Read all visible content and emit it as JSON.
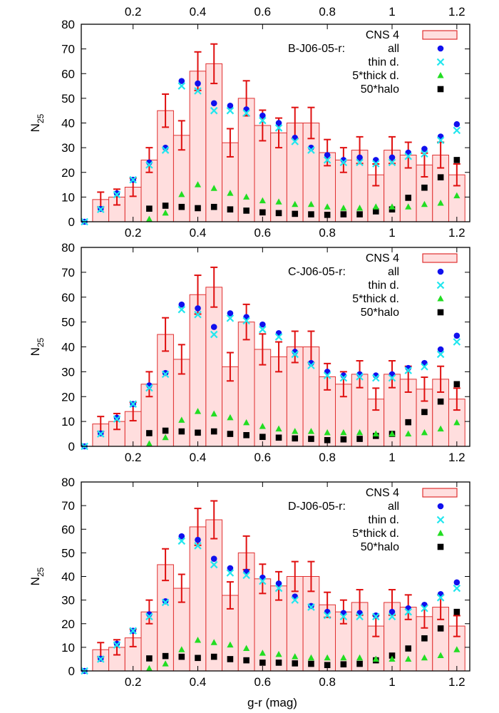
{
  "colors": {
    "hist_fill": "#ffdede",
    "hist_edge": "#e03030",
    "error_bar": "#e01010",
    "all": "#1010ee",
    "thin": "#22e6ee",
    "thick": "#22dd22",
    "halo": "#000000"
  },
  "shared": {
    "xlabel": "g-r (mag)",
    "ylabel_main": "N",
    "ylabel_sub": "25",
    "xticks": [
      0.2,
      0.4,
      0.6,
      0.8,
      1,
      1.2
    ],
    "xtick_labels": [
      "0.2",
      "0.4",
      "0.6",
      "0.8",
      "1",
      "1.2"
    ],
    "yticks": [
      0,
      10,
      20,
      30,
      40,
      50,
      60,
      70,
      80
    ],
    "xlim": [
      0.04,
      1.24
    ],
    "ylim": [
      0,
      80
    ],
    "legend": {
      "hist_label": "CNS 4",
      "all_label": "all",
      "thin_label": "thin d.",
      "thick_label": "5*thick d.",
      "halo_label": "50*halo"
    }
  },
  "chart_data": [
    {
      "type": "bar",
      "model_label": "B-J06-05-r:",
      "hist": {
        "bin_edges": [
          0.075,
          0.125,
          0.175,
          0.225,
          0.275,
          0.325,
          0.375,
          0.425,
          0.475,
          0.525,
          0.575,
          0.625,
          0.675,
          0.725,
          0.775,
          0.825,
          0.875,
          0.925,
          0.975,
          1.025,
          1.075,
          1.125,
          1.175,
          1.225
        ],
        "counts": [
          9,
          10,
          14,
          25,
          45,
          35,
          61,
          64,
          32,
          50,
          39,
          36,
          40,
          40,
          28,
          25,
          29,
          19,
          29,
          27,
          23,
          27,
          19
        ],
        "errors": [
          3,
          3.2,
          3.7,
          5,
          6.7,
          5.9,
          7.8,
          8,
          5.7,
          7.1,
          6.2,
          6,
          6.3,
          6.3,
          5.3,
          5,
          5.4,
          4.4,
          5.4,
          5.2,
          4.8,
          5.2,
          4.4
        ]
      },
      "series": [
        {
          "name": "all",
          "x": [
            0.05,
            0.1,
            0.15,
            0.2,
            0.25,
            0.3,
            0.35,
            0.4,
            0.45,
            0.5,
            0.55,
            0.6,
            0.65,
            0.7,
            0.75,
            0.8,
            0.85,
            0.9,
            0.95,
            1.0,
            1.05,
            1.1,
            1.15,
            1.2
          ],
          "y": [
            0,
            5.2,
            11.5,
            17,
            24,
            30,
            57,
            56,
            48,
            47,
            45.5,
            43,
            40,
            34,
            30,
            27,
            25,
            26,
            25,
            26,
            28,
            29.5,
            34.5,
            39.5
          ]
        },
        {
          "name": "thin d.",
          "x": [
            0.05,
            0.1,
            0.15,
            0.2,
            0.25,
            0.3,
            0.35,
            0.4,
            0.45,
            0.5,
            0.55,
            0.6,
            0.65,
            0.7,
            0.75,
            0.8,
            0.85,
            0.9,
            0.95,
            1.0,
            1.05,
            1.1,
            1.15,
            1.2
          ],
          "y": [
            0,
            5,
            11,
            17,
            23,
            29,
            55,
            53,
            45,
            45,
            44,
            41,
            38,
            32.5,
            29,
            25,
            24,
            24,
            23.5,
            24,
            26.5,
            27.5,
            33,
            37
          ]
        },
        {
          "name": "5*thick d.",
          "x": [
            0.25,
            0.3,
            0.35,
            0.4,
            0.45,
            0.5,
            0.55,
            0.6,
            0.65,
            0.7,
            0.75,
            0.8,
            0.85,
            0.9,
            0.95,
            1.0,
            1.05,
            1.1,
            1.15,
            1.2
          ],
          "y": [
            1,
            3.5,
            11,
            15,
            13.5,
            11.5,
            10,
            8.5,
            8,
            7,
            7,
            6,
            5.5,
            5.5,
            6,
            6,
            6,
            7,
            7.5,
            10.5
          ]
        },
        {
          "name": "50*halo",
          "x": [
            0.25,
            0.3,
            0.35,
            0.4,
            0.45,
            0.5,
            0.55,
            0.6,
            0.65,
            0.7,
            0.75,
            0.8,
            0.85,
            0.9,
            0.95,
            1.0,
            1.05,
            1.1,
            1.15,
            1.2
          ],
          "y": [
            5.3,
            6.5,
            6,
            5.5,
            6,
            5,
            4.5,
            3.8,
            3.5,
            3.2,
            3,
            2.8,
            3,
            3,
            4.2,
            5,
            9.7,
            13.8,
            18,
            25
          ]
        }
      ]
    },
    {
      "type": "bar",
      "model_label": "C-J06-05-r:",
      "hist": {
        "bin_edges": [
          0.075,
          0.125,
          0.175,
          0.225,
          0.275,
          0.325,
          0.375,
          0.425,
          0.475,
          0.525,
          0.575,
          0.625,
          0.675,
          0.725,
          0.775,
          0.825,
          0.875,
          0.925,
          0.975,
          1.025,
          1.075,
          1.125,
          1.175,
          1.225
        ],
        "counts": [
          9,
          10,
          14,
          25,
          45,
          35,
          61,
          64,
          32,
          50,
          39,
          36,
          40,
          40,
          28,
          25,
          29,
          19,
          29,
          27,
          23,
          27,
          19
        ],
        "errors": [
          3,
          3.2,
          3.7,
          5,
          6.7,
          5.9,
          7.8,
          8,
          5.7,
          7.1,
          6.2,
          6,
          6.3,
          6.3,
          5.3,
          5,
          5.4,
          4.4,
          5.4,
          5.2,
          4.8,
          5.2,
          4.4
        ]
      },
      "series": [
        {
          "name": "all",
          "x": [
            0.05,
            0.1,
            0.15,
            0.2,
            0.25,
            0.3,
            0.35,
            0.4,
            0.45,
            0.5,
            0.55,
            0.6,
            0.65,
            0.7,
            0.75,
            0.8,
            0.85,
            0.9,
            0.95,
            1.0,
            1.05,
            1.1,
            1.15,
            1.2
          ],
          "y": [
            0,
            5.2,
            11.5,
            17,
            24.5,
            29.5,
            57,
            55.5,
            48,
            53.5,
            52,
            49,
            45.5,
            38,
            33.5,
            30,
            28.5,
            29,
            28.5,
            29,
            31.5,
            33.5,
            39,
            44.5
          ]
        },
        {
          "name": "thin d.",
          "x": [
            0.05,
            0.1,
            0.15,
            0.2,
            0.25,
            0.3,
            0.35,
            0.4,
            0.45,
            0.5,
            0.55,
            0.6,
            0.65,
            0.7,
            0.75,
            0.8,
            0.85,
            0.9,
            0.95,
            1.0,
            1.05,
            1.1,
            1.15,
            1.2
          ],
          "y": [
            0,
            5,
            11,
            17,
            23.5,
            29,
            55,
            53,
            45,
            51.5,
            50.5,
            47,
            44,
            37,
            32.5,
            28.5,
            27.5,
            28,
            27.5,
            27.5,
            30.5,
            32,
            37,
            42
          ]
        },
        {
          "name": "5*thick d.",
          "x": [
            0.25,
            0.3,
            0.35,
            0.4,
            0.45,
            0.5,
            0.55,
            0.6,
            0.65,
            0.7,
            0.75,
            0.8,
            0.85,
            0.9,
            0.95,
            1.0,
            1.05,
            1.1,
            1.15,
            1.2
          ],
          "y": [
            1,
            3.5,
            10.5,
            14,
            13,
            11.5,
            9.5,
            8,
            7,
            6,
            6,
            5.5,
            5.5,
            5.5,
            5,
            5,
            5,
            5.5,
            7,
            9.5
          ]
        },
        {
          "name": "50*halo",
          "x": [
            0.25,
            0.3,
            0.35,
            0.4,
            0.45,
            0.5,
            0.55,
            0.6,
            0.65,
            0.7,
            0.75,
            0.8,
            0.85,
            0.9,
            0.95,
            1.0,
            1.05,
            1.1,
            1.15,
            1.2
          ],
          "y": [
            5.3,
            6.3,
            6,
            5.5,
            6,
            5,
            4.5,
            3.8,
            3.5,
            3.2,
            3,
            2.5,
            2.8,
            3,
            4.2,
            5,
            9.7,
            13.8,
            18,
            25
          ]
        }
      ]
    },
    {
      "type": "bar",
      "model_label": "D-J06-05-r:",
      "hist": {
        "bin_edges": [
          0.075,
          0.125,
          0.175,
          0.225,
          0.275,
          0.325,
          0.375,
          0.425,
          0.475,
          0.525,
          0.575,
          0.625,
          0.675,
          0.725,
          0.775,
          0.825,
          0.875,
          0.925,
          0.975,
          1.025,
          1.075,
          1.125,
          1.175,
          1.225
        ],
        "counts": [
          9,
          10,
          14,
          25,
          45,
          35,
          61,
          64,
          32,
          50,
          39,
          36,
          40,
          40,
          28,
          25,
          29,
          19,
          29,
          27,
          23,
          27,
          19
        ],
        "errors": [
          3,
          3.2,
          3.7,
          5,
          6.7,
          5.9,
          7.8,
          8,
          5.7,
          7.1,
          6.2,
          6,
          6.3,
          6.3,
          5.3,
          5,
          5.4,
          4.4,
          5.4,
          5.2,
          4.8,
          5.2,
          4.4
        ]
      },
      "series": [
        {
          "name": "all",
          "x": [
            0.05,
            0.1,
            0.15,
            0.2,
            0.25,
            0.3,
            0.35,
            0.4,
            0.45,
            0.5,
            0.55,
            0.6,
            0.65,
            0.7,
            0.75,
            0.8,
            0.85,
            0.9,
            0.95,
            1.0,
            1.05,
            1.1,
            1.15,
            1.2
          ],
          "y": [
            0,
            5.2,
            11.5,
            17,
            24,
            29.5,
            57,
            55.5,
            47.5,
            43.5,
            42,
            39.5,
            37,
            31.5,
            27.5,
            25,
            24.5,
            24.5,
            23.5,
            25,
            26.5,
            28,
            32.5,
            37.5
          ]
        },
        {
          "name": "thin d.",
          "x": [
            0.05,
            0.1,
            0.15,
            0.2,
            0.25,
            0.3,
            0.35,
            0.4,
            0.45,
            0.5,
            0.55,
            0.6,
            0.65,
            0.7,
            0.75,
            0.8,
            0.85,
            0.9,
            0.95,
            1.0,
            1.05,
            1.1,
            1.15,
            1.2
          ],
          "y": [
            0,
            5,
            11,
            17,
            23,
            29,
            55,
            53,
            45,
            41.5,
            40.5,
            38,
            35,
            30,
            27,
            23.5,
            23,
            23,
            23,
            23,
            25,
            26.5,
            31,
            35
          ]
        },
        {
          "name": "5*thick d.",
          "x": [
            0.25,
            0.3,
            0.35,
            0.4,
            0.45,
            0.5,
            0.55,
            0.6,
            0.65,
            0.7,
            0.75,
            0.8,
            0.85,
            0.9,
            0.95,
            1.0,
            1.05,
            1.1,
            1.15,
            1.2
          ],
          "y": [
            1,
            3,
            9,
            13,
            12,
            11,
            9.5,
            7.5,
            7,
            6,
            5.5,
            5.5,
            5.5,
            5.5,
            5,
            5,
            5,
            5.5,
            6.5,
            9
          ]
        },
        {
          "name": "50*halo",
          "x": [
            0.25,
            0.3,
            0.35,
            0.4,
            0.45,
            0.5,
            0.55,
            0.6,
            0.65,
            0.7,
            0.75,
            0.8,
            0.85,
            0.9,
            0.95,
            1.0,
            1.05,
            1.1,
            1.15,
            1.2
          ],
          "y": [
            5.3,
            6.3,
            6,
            5.5,
            6,
            5,
            4.5,
            3.5,
            3.5,
            3.2,
            3,
            2.5,
            2.8,
            3,
            4.5,
            6.5,
            9.5,
            13.8,
            18,
            25
          ]
        }
      ]
    }
  ]
}
